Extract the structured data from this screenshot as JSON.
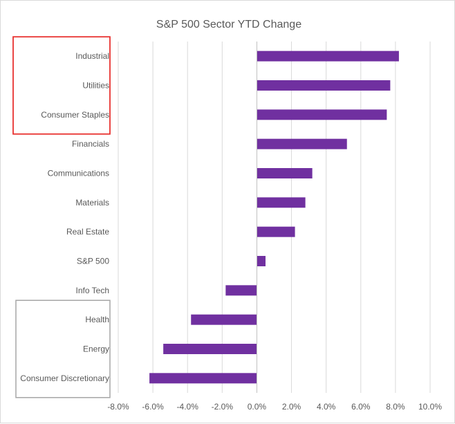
{
  "chart_data": {
    "type": "bar",
    "orientation": "horizontal",
    "title": "S&P 500 Sector YTD Change",
    "xlabel": "",
    "ylabel": "",
    "categories": [
      "Industrial",
      "Utilities",
      "Consumer Staples",
      "Financials",
      "Communications",
      "Materials",
      "Real Estate",
      "S&P 500",
      "Info Tech",
      "Health",
      "Energy",
      "Consumer Discretionary"
    ],
    "values": [
      8.2,
      7.7,
      7.5,
      5.2,
      3.2,
      2.8,
      2.2,
      0.5,
      -1.8,
      -3.8,
      -5.4,
      -6.2
    ],
    "xlim": [
      -8,
      10
    ],
    "x_ticks": [
      -8,
      -6,
      -4,
      -2,
      0,
      2,
      4,
      6,
      8,
      10
    ],
    "x_tick_labels": [
      "-8.0%",
      "-6.0%",
      "-4.0%",
      "-2.0%",
      "0.0%",
      "2.0%",
      "4.0%",
      "6.0%",
      "8.0%",
      "10.0%"
    ],
    "grid": "vertical",
    "legend": "none",
    "colors": {
      "bar": "#7030A0",
      "grid": "#d9d9d9",
      "axis": "#bfbfbf",
      "text": "#595959",
      "highlight_top": "#e8312f",
      "highlight_bottom": "#a6a6a6"
    },
    "annotations": [
      {
        "shape": "box",
        "color": "highlight_top",
        "categories": [
          "Industrial",
          "Utilities",
          "Consumer Staples"
        ]
      },
      {
        "shape": "box",
        "color": "highlight_bottom",
        "categories": [
          "Health",
          "Energy",
          "Consumer Discretionary"
        ]
      }
    ]
  }
}
